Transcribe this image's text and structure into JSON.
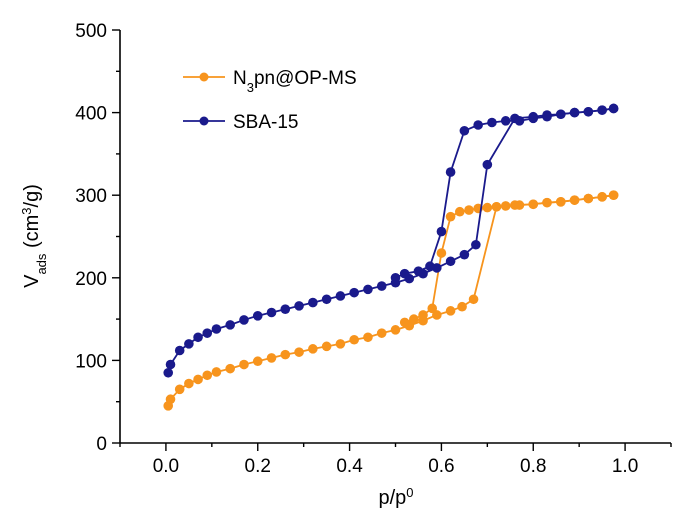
{
  "chart_data": {
    "type": "line",
    "xlabel": {
      "base": "p/p",
      "sup": "0"
    },
    "ylabel": {
      "main": "V",
      "sub": "ads",
      "unit_pre": " (cm",
      "unit_sup": "3",
      "unit_post": "/g)"
    },
    "xlim": [
      -0.1,
      1.1
    ],
    "ylim": [
      0,
      500
    ],
    "x_ticks": [
      0.0,
      0.2,
      0.4,
      0.6,
      0.8,
      1.0
    ],
    "x_tick_labels": [
      "0.0",
      "0.2",
      "0.4",
      "0.6",
      "0.8",
      "1.0"
    ],
    "y_ticks": [
      0,
      100,
      200,
      300,
      400,
      500
    ],
    "y_tick_labels": [
      "0",
      "100",
      "200",
      "300",
      "400",
      "500"
    ],
    "legend_position": "top-left",
    "series": [
      {
        "name_parts": [
          "N",
          "3",
          "pn@OP-MS"
        ],
        "name": "N3pn@OP-MS",
        "color": "#F7941D",
        "adsorption": {
          "x": [
            0.005,
            0.01,
            0.03,
            0.05,
            0.07,
            0.09,
            0.11,
            0.14,
            0.17,
            0.2,
            0.23,
            0.26,
            0.29,
            0.32,
            0.35,
            0.38,
            0.41,
            0.44,
            0.47,
            0.5,
            0.53,
            0.56,
            0.59,
            0.62,
            0.645,
            0.67,
            0.72,
            0.76,
            0.8,
            0.83,
            0.86,
            0.89,
            0.92,
            0.95,
            0.975
          ],
          "y": [
            45,
            53,
            65,
            72,
            77,
            82,
            86,
            90,
            95,
            99,
            103,
            107,
            110,
            114,
            117,
            120,
            125,
            128,
            133,
            137,
            142,
            148,
            155,
            160,
            165,
            174,
            286,
            288,
            289,
            291,
            292,
            294,
            296,
            298,
            300
          ]
        },
        "desorption": {
          "x": [
            0.975,
            0.95,
            0.92,
            0.89,
            0.86,
            0.83,
            0.8,
            0.77,
            0.74,
            0.72,
            0.7,
            0.68,
            0.66,
            0.64,
            0.62,
            0.6,
            0.58,
            0.56,
            0.54,
            0.52
          ],
          "y": [
            300,
            298,
            296,
            294,
            292,
            291,
            289,
            288,
            287,
            286,
            285,
            284,
            282,
            280,
            274,
            230,
            163,
            155,
            150,
            146
          ]
        }
      },
      {
        "name": "SBA-15",
        "color": "#1A1A8C",
        "adsorption": {
          "x": [
            0.005,
            0.01,
            0.03,
            0.05,
            0.07,
            0.09,
            0.11,
            0.14,
            0.17,
            0.2,
            0.23,
            0.26,
            0.29,
            0.32,
            0.35,
            0.38,
            0.41,
            0.44,
            0.47,
            0.5,
            0.53,
            0.56,
            0.59,
            0.62,
            0.65,
            0.675,
            0.7,
            0.76,
            0.8,
            0.83,
            0.86,
            0.89,
            0.92,
            0.95,
            0.975
          ],
          "y": [
            85,
            95,
            112,
            120,
            128,
            133,
            138,
            143,
            149,
            154,
            158,
            162,
            166,
            170,
            174,
            178,
            182,
            186,
            190,
            194,
            199,
            205,
            212,
            220,
            228,
            240,
            337,
            393,
            395,
            397,
            398,
            400,
            401,
            403,
            405
          ]
        },
        "desorption": {
          "x": [
            0.975,
            0.95,
            0.92,
            0.89,
            0.86,
            0.83,
            0.8,
            0.77,
            0.74,
            0.71,
            0.68,
            0.65,
            0.62,
            0.6,
            0.575,
            0.55,
            0.52,
            0.5
          ],
          "y": [
            405,
            403,
            401,
            400,
            398,
            395,
            393,
            390,
            390,
            388,
            385,
            378,
            328,
            256,
            214,
            208,
            205,
            200
          ]
        }
      }
    ]
  }
}
